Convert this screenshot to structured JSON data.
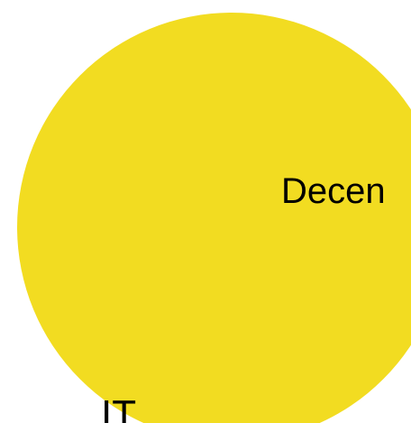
{
  "colors": {
    "circle_fill": "#F2DC21",
    "background": "#FFFFFF",
    "text": "#000000"
  },
  "labels": {
    "center_text": "Decen",
    "bottom_text": "IT"
  }
}
